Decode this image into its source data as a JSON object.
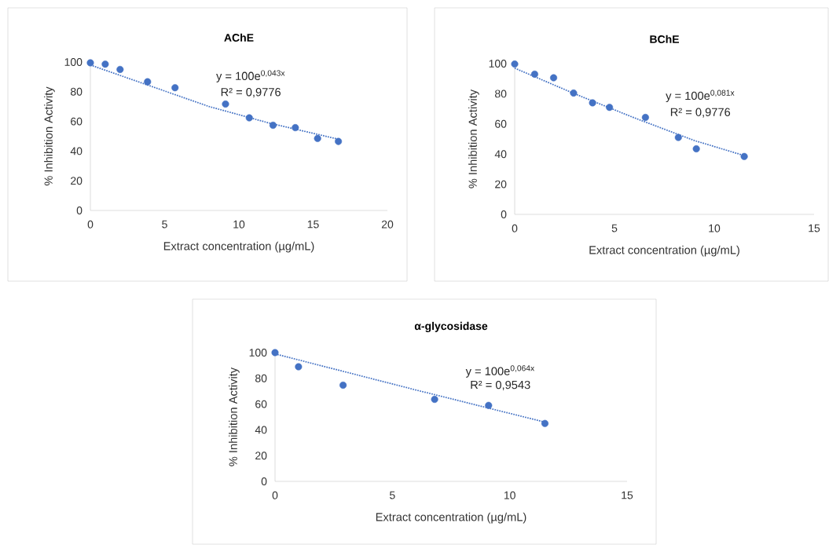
{
  "chart_data": [
    {
      "type": "scatter",
      "title": "AChE",
      "xlabel": "Extract concentration  (µg/mL)",
      "ylabel": "% Inhibition Activity",
      "marker": "circle",
      "annotations": [
        "y = 100e$^{0,043x}$",
        "R² = 0,9776"
      ],
      "xlim": [
        0,
        20
      ],
      "xticks": [
        0,
        5,
        10,
        15,
        20
      ],
      "ylim": [
        0,
        100
      ],
      "yticks": [
        0,
        20,
        40,
        60,
        80,
        100
      ],
      "series": [
        {
          "color": "#4472c4",
          "x": [
            0,
            1.0,
            2.0,
            3.85,
            5.7,
            9.1,
            10.7,
            12.3,
            13.8,
            15.3,
            16.7
          ],
          "values": [
            99.5,
            98.6,
            95,
            86.7,
            82.7,
            71.7,
            62.4,
            57.4,
            55.8,
            48.5,
            46.5
          ]
        },
        {
          "type": "line",
          "line_style": "dotted",
          "marker": "none",
          "color": "#4472c4",
          "x": [
            0,
            4,
            8,
            12,
            16.7
          ],
          "values": [
            98,
            84,
            70,
            59,
            48
          ]
        }
      ]
    },
    {
      "type": "scatter",
      "title": "BChE",
      "xlabel": "Extract concentration  (µg/mL)",
      "ylabel": "% Inhibition Activity",
      "marker": "circle",
      "annotations": [
        "y = 100e$^{0,081x}$",
        "R² = 0,9776"
      ],
      "xlim": [
        0,
        15
      ],
      "xticks": [
        0,
        5,
        10,
        15
      ],
      "ylim": [
        0,
        100
      ],
      "yticks": [
        0,
        20,
        40,
        60,
        80,
        100
      ],
      "series": [
        {
          "color": "#4472c4",
          "x": [
            0,
            1.0,
            1.95,
            2.95,
            3.9,
            4.75,
            6.55,
            8.2,
            9.1,
            11.5
          ],
          "values": [
            99.7,
            93,
            90.6,
            80.5,
            74,
            71,
            64.3,
            51,
            43.5,
            38.4
          ]
        },
        {
          "type": "line",
          "line_style": "dotted",
          "marker": "none",
          "color": "#4472c4",
          "x": [
            0,
            3,
            6,
            9,
            11.5
          ],
          "values": [
            97,
            80,
            64,
            49,
            39
          ]
        }
      ]
    },
    {
      "type": "scatter",
      "title": "α-glycosidase",
      "xlabel": "Extract concentration  (µg/mL)",
      "ylabel": "% Inhibition Activity",
      "marker": "circle",
      "annotations": [
        "y = 100e$^{0,064x}$",
        "R² = 0,9543"
      ],
      "xlim": [
        0,
        15
      ],
      "xticks": [
        0,
        5,
        10,
        15
      ],
      "ylim": [
        0,
        100
      ],
      "yticks": [
        0,
        20,
        40,
        60,
        80,
        100
      ],
      "series": [
        {
          "color": "#4472c4",
          "x": [
            0,
            1.0,
            2.9,
            6.8,
            9.1,
            11.5
          ],
          "values": [
            100,
            89,
            74.7,
            63.7,
            59,
            45
          ]
        },
        {
          "type": "line",
          "line_style": "dotted",
          "marker": "none",
          "color": "#4472c4",
          "x": [
            0,
            6,
            11.5
          ],
          "values": [
            99,
            71,
            46
          ]
        }
      ]
    }
  ]
}
